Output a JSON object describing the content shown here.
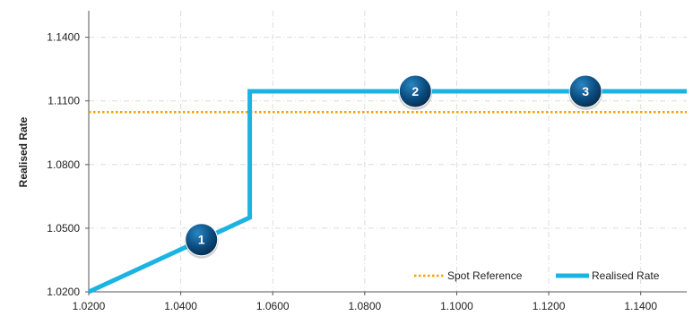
{
  "chart_data": {
    "type": "line",
    "ylabel": "Realised Rate",
    "xlabel": "",
    "title": "",
    "xlim": [
      1.02,
      1.15
    ],
    "ylim": [
      1.02,
      1.1525
    ],
    "x_ticks": [
      1.02,
      1.04,
      1.06,
      1.08,
      1.1,
      1.12,
      1.14
    ],
    "x_tick_labels": [
      "1.0200",
      "1.0400",
      "1.0600",
      "1.0800",
      "1.1000",
      "1.1200",
      "1.1400"
    ],
    "y_ticks": [
      1.02,
      1.05,
      1.08,
      1.11,
      1.14
    ],
    "y_tick_labels": [
      "1.0200",
      "1.0500",
      "1.0800",
      "1.1100",
      "1.1400"
    ],
    "grid": true,
    "legend_position": "bottom-right",
    "series": [
      {
        "name": "Realised Rate",
        "color": "#1ab4e2",
        "x": [
          1.02,
          1.055,
          1.055,
          1.15
        ],
        "y": [
          1.02,
          1.055,
          1.1145,
          1.1145
        ]
      },
      {
        "name": "Spot Reference",
        "color": "#f5a300",
        "style": "dotted",
        "x": [
          1.02,
          1.15
        ],
        "y": [
          1.1047,
          1.1047
        ]
      }
    ],
    "markers": [
      {
        "label": "1",
        "x": 1.0445,
        "y": 1.0446
      },
      {
        "label": "2",
        "x": 1.091,
        "y": 1.1145
      },
      {
        "label": "3",
        "x": 1.128,
        "y": 1.1145
      }
    ]
  }
}
